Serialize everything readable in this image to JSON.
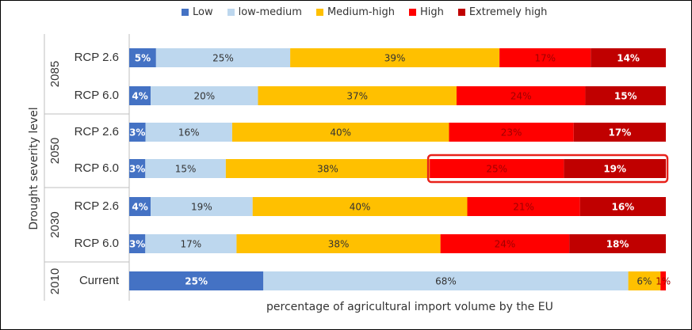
{
  "chart_data": {
    "type": "bar",
    "orientation": "horizontal",
    "stacked": true,
    "xlabel": "percentage of agricultural import volume by the EU",
    "ylabel": "Drought severity level",
    "xlim": [
      0,
      100
    ],
    "legend_position": "top",
    "groups": [
      {
        "label": "2085",
        "rows": [
          "RCP 2.6",
          "RCP 6.0"
        ]
      },
      {
        "label": "2050",
        "rows": [
          "RCP 2.6",
          "RCP 6.0"
        ]
      },
      {
        "label": "2030",
        "rows": [
          "RCP 2.6",
          "RCP 6.0"
        ]
      },
      {
        "label": "2010",
        "rows": [
          "Current"
        ]
      }
    ],
    "categories": [
      "2085 RCP 2.6",
      "2085 RCP 6.0",
      "2050 RCP 2.6",
      "2050 RCP 6.0",
      "2030 RCP 2.6",
      "2030 RCP 6.0",
      "2010 Current"
    ],
    "series": [
      {
        "name": "Low",
        "color": "#4472C4",
        "values": [
          5,
          4,
          3,
          3,
          4,
          3,
          25
        ]
      },
      {
        "name": "low-medium",
        "color": "#BDD7EE",
        "values": [
          25,
          20,
          16,
          15,
          19,
          17,
          68
        ]
      },
      {
        "name": "Medium-high",
        "color": "#FFC000",
        "values": [
          39,
          37,
          40,
          38,
          40,
          38,
          6
        ]
      },
      {
        "name": "High",
        "color": "#FF0000",
        "values": [
          17,
          24,
          23,
          25,
          21,
          24,
          1
        ]
      },
      {
        "name": "Extremely high",
        "color": "#C00000",
        "values": [
          14,
          15,
          17,
          19,
          16,
          18,
          0
        ]
      }
    ],
    "data_labels": [
      [
        "5%",
        "25%",
        "39%",
        "17%",
        "14%"
      ],
      [
        "4%",
        "20%",
        "37%",
        "24%",
        "15%"
      ],
      [
        "3%",
        "16%",
        "40%",
        "23%",
        "17%"
      ],
      [
        "3%",
        "15%",
        "38%",
        "25%",
        "19%"
      ],
      [
        "4%",
        "19%",
        "40%",
        "21%",
        "16%"
      ],
      [
        "3%",
        "17%",
        "38%",
        "24%",
        "18%"
      ],
      [
        "25%",
        "68%",
        "6%",
        "1%",
        ""
      ]
    ],
    "highlight": {
      "row": 3,
      "segments": [
        3,
        4
      ],
      "color": "#E8221B"
    }
  }
}
